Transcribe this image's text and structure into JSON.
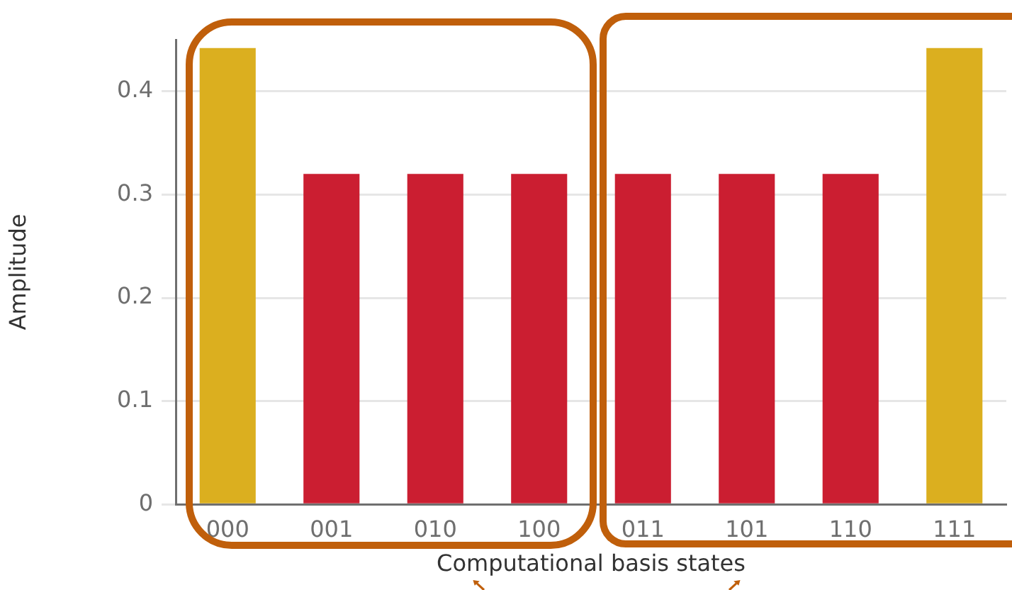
{
  "chart_data": {
    "type": "bar",
    "xlabel": "Computational basis states",
    "ylabel": "Amplitude",
    "categories": [
      "000",
      "001",
      "010",
      "100",
      "011",
      "101",
      "110",
      "111"
    ],
    "values": [
      0.442,
      0.32,
      0.32,
      0.32,
      0.32,
      0.32,
      0.32,
      0.442
    ],
    "colors": [
      "#dbaf1f",
      "#cb1e31",
      "#cb1e31",
      "#cb1e31",
      "#cb1e31",
      "#cb1e31",
      "#cb1e31",
      "#dbaf1f"
    ],
    "ylim": [
      0,
      0.45
    ],
    "yticks": [
      0,
      0.1,
      0.2,
      0.3,
      0.4
    ],
    "grid": "y",
    "legend": false
  }
}
